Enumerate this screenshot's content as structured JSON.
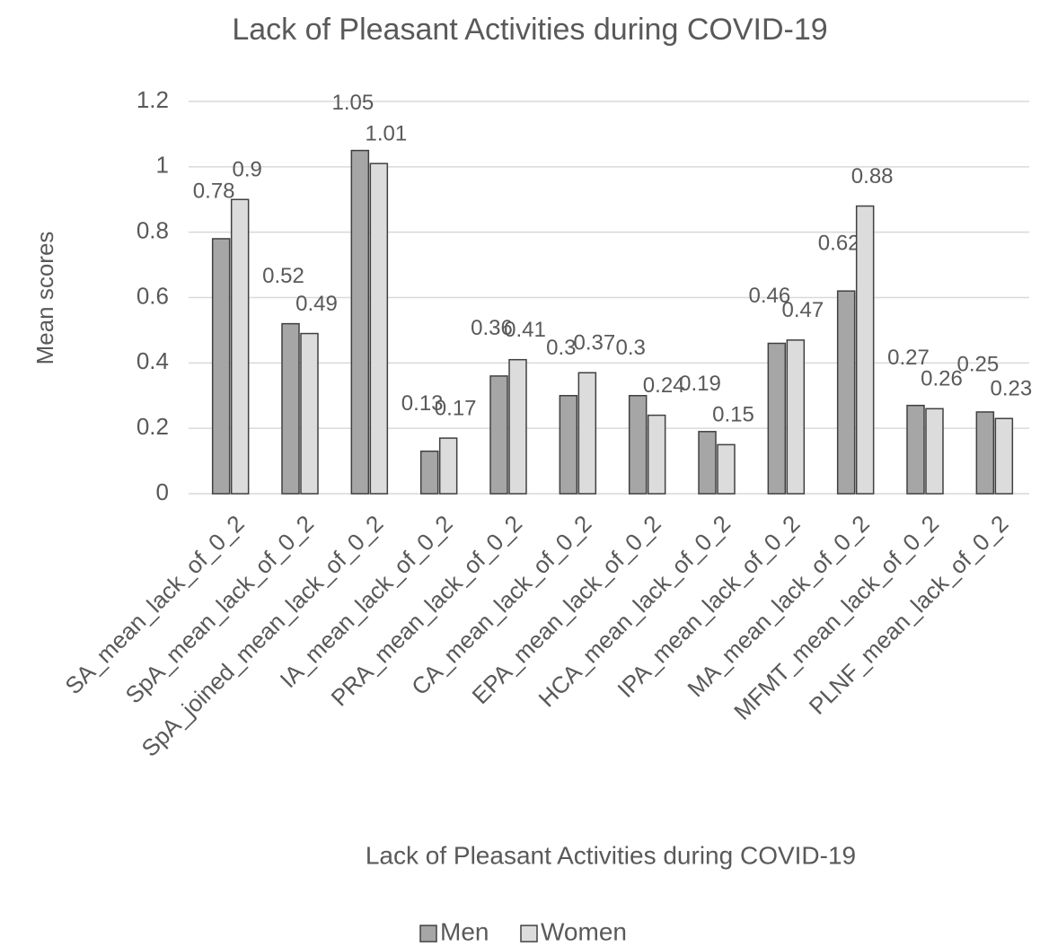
{
  "chart_data": {
    "type": "bar",
    "title": "Lack of Pleasant Activities during COVID-19",
    "x_label": "Lack of Pleasant Activities during COVID-19",
    "y_label": "Mean scores",
    "categories": [
      "SA_mean_lack_of_0_2",
      "SpA_mean_lack_of_0_2",
      "SpA_joined_mean_lack_of_0_2",
      "IA_mean_lack_of_0_2",
      "PRA_mean_lack_of_0_2",
      "CA_mean_lack_of_0_2",
      "EPA_mean_lack_of_0_2",
      "HCA_mean_lack_of_0_2",
      "IPA_mean_lack_of_0_2",
      "MA_mean_lack_of_0_2",
      "MFMT_mean_lack_of_0_2",
      "PLNF_mean_lack_of_0_2"
    ],
    "series": [
      {
        "name": "Men",
        "color": "#a6a6a6",
        "values": [
          0.78,
          0.52,
          1.05,
          0.13,
          0.36,
          0.3,
          0.3,
          0.19,
          0.46,
          0.62,
          0.27,
          0.25
        ]
      },
      {
        "name": "Women",
        "color": "#dcdcdc",
        "values": [
          0.9,
          0.49,
          1.01,
          0.17,
          0.41,
          0.37,
          0.24,
          0.15,
          0.47,
          0.88,
          0.26,
          0.23
        ]
      }
    ],
    "ylim": [
      0,
      1.2
    ],
    "yticks": [
      0,
      0.2,
      0.4,
      0.6,
      0.8,
      1,
      1.2
    ],
    "grid": true,
    "legend": "bottom"
  }
}
